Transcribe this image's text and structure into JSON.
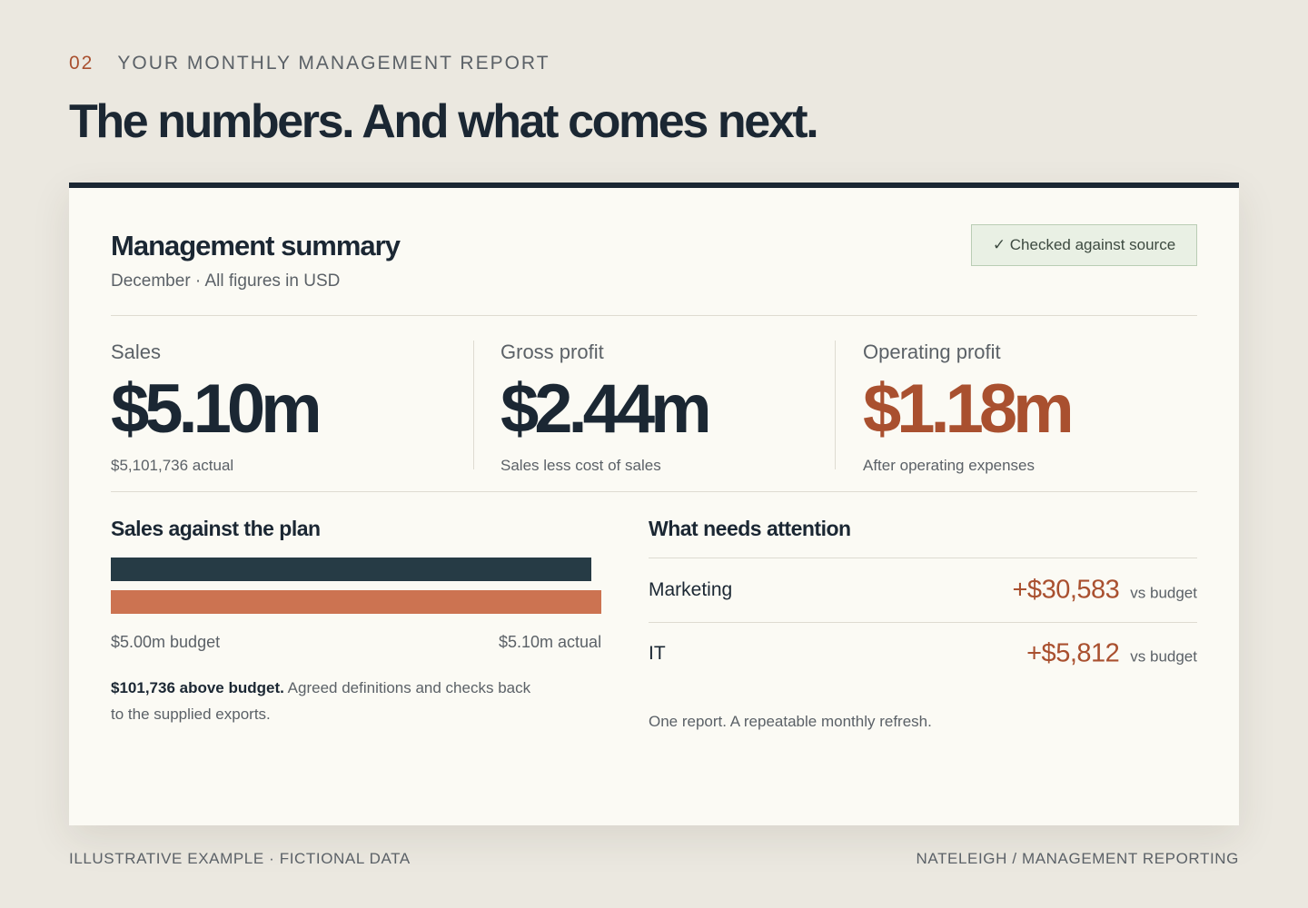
{
  "header": {
    "section_number": "02",
    "eyebrow": "YOUR MONTHLY MANAGEMENT REPORT",
    "headline": "The numbers. And what comes next."
  },
  "summary": {
    "title": "Management summary",
    "subtitle": "December · All figures in USD",
    "badge": "✓ Checked against source"
  },
  "kpis": [
    {
      "label": "Sales",
      "value": "$5.10m",
      "note": "$5,101,736 actual"
    },
    {
      "label": "Gross profit",
      "value": "$2.44m",
      "note": "Sales less cost of sales"
    },
    {
      "label": "Operating profit",
      "value": "$1.18m",
      "note": "After operating expenses"
    }
  ],
  "plan": {
    "title": "Sales against the plan",
    "budget_label": "$5.00m budget",
    "actual_label": "$5.10m actual",
    "explain_strong": "$101,736 above budget.",
    "explain_rest": " Agreed definitions and checks back to the supplied exports."
  },
  "chart_data": {
    "type": "bar",
    "categories": [
      "budget",
      "actual"
    ],
    "values": [
      5.0,
      5.1
    ],
    "title": "Sales against the plan",
    "xlabel": "",
    "ylabel": "",
    "colors": [
      "#263b45",
      "#cc7351"
    ]
  },
  "attention": {
    "title": "What needs attention",
    "items": [
      {
        "name": "Marketing",
        "amount": "+$30,583",
        "unit": "vs budget"
      },
      {
        "name": "IT",
        "amount": "+$5,812",
        "unit": "vs budget"
      }
    ],
    "footnote": "One report. A repeatable monthly refresh."
  },
  "footer": {
    "left": "ILLUSTRATIVE EXAMPLE · FICTIONAL DATA",
    "right": "NATELEIGH / MANAGEMENT REPORTING"
  }
}
